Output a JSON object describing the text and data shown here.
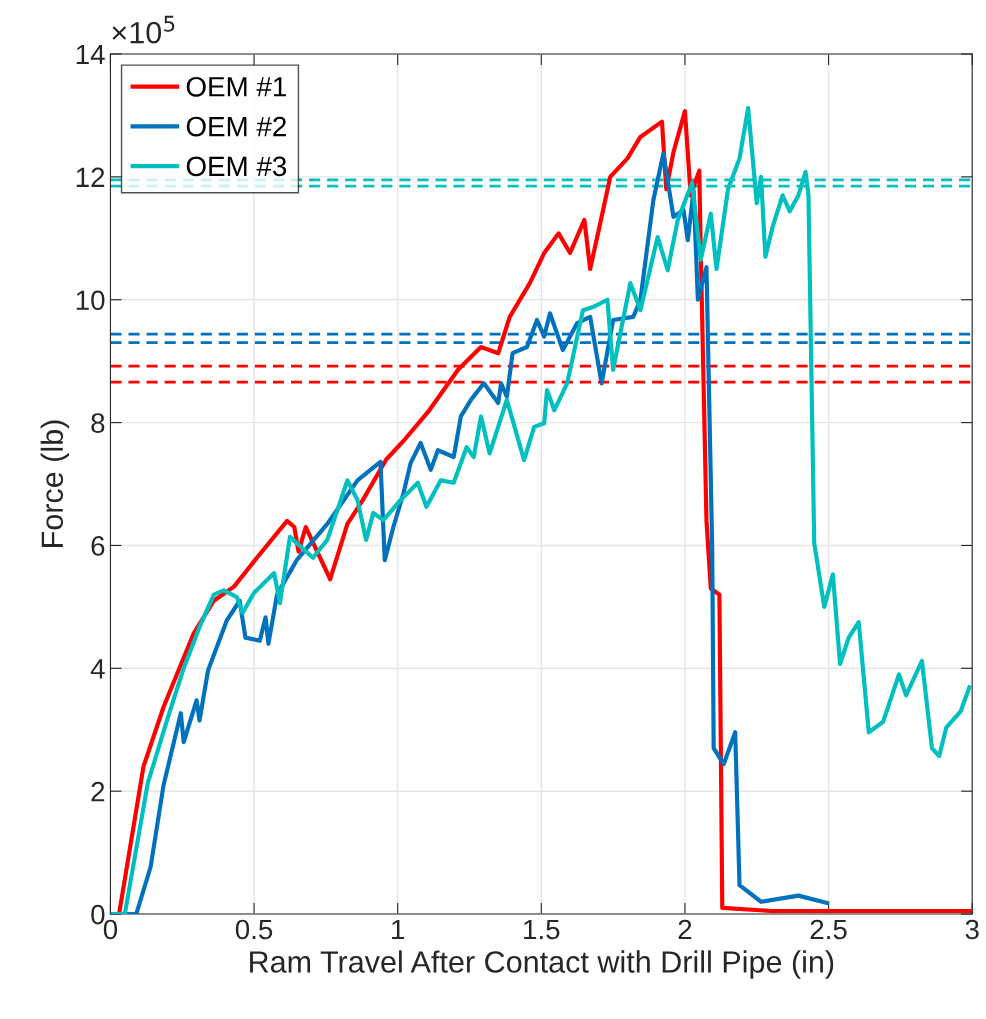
{
  "chart_data": {
    "type": "line",
    "xlabel": "Ram Travel After Contact with Drill Pipe (in)",
    "ylabel": "Force (lb)",
    "annotations": [
      "×10$^{5}$"
    ],
    "xlim": [
      0,
      3
    ],
    "xticks": [
      0,
      0.5,
      1,
      1.5,
      2,
      2.5,
      3
    ],
    "ylim": [
      0,
      14
    ],
    "yticks": [
      0,
      2,
      4,
      6,
      8,
      10,
      12,
      14
    ],
    "grid": true,
    "legend": "top left",
    "line_style": "solid",
    "marker": "none",
    "series": [
      {
        "name": "OEM #1",
        "color": "#ff0000",
        "x": [
          0.03,
          0.115,
          0.185,
          0.24,
          0.29,
          0.36,
          0.43,
          0.51,
          0.615,
          0.64,
          0.655,
          0.68,
          0.765,
          0.825,
          0.88,
          0.96,
          1.02,
          1.11,
          1.21,
          1.29,
          1.35,
          1.39,
          1.46,
          1.51,
          1.56,
          1.6,
          1.65,
          1.67,
          1.71,
          1.74,
          1.8,
          1.845,
          1.92,
          1.935,
          1.96,
          2.0,
          2.02,
          2.05,
          2.055,
          2.075,
          2.09,
          2.12,
          2.13,
          2.3,
          2.5,
          2.7,
          2.9,
          3.0
        ],
        "values": [
          0,
          2.4,
          3.37,
          4.0,
          4.57,
          5.1,
          5.33,
          5.8,
          6.4,
          6.3,
          5.9,
          6.3,
          5.45,
          6.35,
          6.75,
          7.4,
          7.7,
          8.2,
          8.86,
          9.23,
          9.13,
          9.72,
          10.27,
          10.76,
          11.08,
          10.76,
          11.3,
          10.5,
          11.35,
          12.0,
          12.3,
          12.65,
          12.9,
          11.8,
          12.4,
          13.07,
          11.7,
          12.1,
          10.8,
          6.4,
          5.3,
          5.2,
          0.1,
          0.05,
          0.05,
          0.05,
          0.05,
          0.05
        ]
      },
      {
        "name": "OEM #2",
        "color": "#0072bd",
        "x": [
          0.0,
          0.09,
          0.14,
          0.185,
          0.245,
          0.255,
          0.3,
          0.31,
          0.34,
          0.405,
          0.45,
          0.47,
          0.52,
          0.54,
          0.55,
          0.58,
          0.65,
          0.755,
          0.86,
          0.94,
          0.955,
          0.985,
          1.02,
          1.045,
          1.08,
          1.115,
          1.14,
          1.195,
          1.22,
          1.255,
          1.3,
          1.35,
          1.36,
          1.38,
          1.4,
          1.45,
          1.485,
          1.51,
          1.53,
          1.575,
          1.625,
          1.67,
          1.71,
          1.75,
          1.82,
          1.845,
          1.89,
          1.925,
          1.96,
          1.995,
          2.01,
          2.03,
          2.045,
          2.075,
          2.095,
          2.1,
          2.135,
          2.175,
          2.19,
          2.265,
          2.395,
          2.495
        ],
        "values": [
          0,
          0,
          0.77,
          2.1,
          3.27,
          2.8,
          3.48,
          3.15,
          3.97,
          4.78,
          5.1,
          4.5,
          4.45,
          4.83,
          4.4,
          5.2,
          5.77,
          6.35,
          7.06,
          7.36,
          5.76,
          6.3,
          6.85,
          7.34,
          7.67,
          7.23,
          7.55,
          7.44,
          8.1,
          8.37,
          8.64,
          8.32,
          8.64,
          8.42,
          9.13,
          9.23,
          9.67,
          9.4,
          9.78,
          9.18,
          9.62,
          9.72,
          8.64,
          9.67,
          9.72,
          10.0,
          11.62,
          12.38,
          11.35,
          11.46,
          10.97,
          11.78,
          10.0,
          10.53,
          5.93,
          2.7,
          2.44,
          2.96,
          0.47,
          0.2,
          0.3,
          0.18
        ]
      },
      {
        "name": "OEM #3",
        "color": "#00bfbf",
        "x": [
          0.01,
          0.05,
          0.13,
          0.2,
          0.255,
          0.31,
          0.36,
          0.395,
          0.44,
          0.46,
          0.5,
          0.57,
          0.59,
          0.625,
          0.705,
          0.755,
          0.825,
          0.86,
          0.89,
          0.915,
          0.95,
          1.01,
          1.045,
          1.07,
          1.1,
          1.15,
          1.195,
          1.24,
          1.265,
          1.29,
          1.32,
          1.38,
          1.44,
          1.475,
          1.51,
          1.52,
          1.545,
          1.59,
          1.61,
          1.645,
          1.68,
          1.73,
          1.75,
          1.775,
          1.81,
          1.845,
          1.905,
          1.94,
          1.975,
          2.025,
          2.055,
          2.09,
          2.11,
          2.15,
          2.19,
          2.22,
          2.25,
          2.265,
          2.28,
          2.305,
          2.34,
          2.365,
          2.395,
          2.42,
          2.43,
          2.45,
          2.485,
          2.515,
          2.54,
          2.57,
          2.605,
          2.64,
          2.69,
          2.745,
          2.77,
          2.825,
          2.86,
          2.885,
          2.91,
          2.96,
          2.99
        ],
        "values": [
          0,
          0,
          2.13,
          3.2,
          4.0,
          4.67,
          5.2,
          5.27,
          5.16,
          4.9,
          5.23,
          5.55,
          5.06,
          6.14,
          5.8,
          6.09,
          7.06,
          6.74,
          6.09,
          6.53,
          6.41,
          6.74,
          6.9,
          7.02,
          6.63,
          7.06,
          7.02,
          7.6,
          7.44,
          8.1,
          7.5,
          8.37,
          7.39,
          7.93,
          7.99,
          8.53,
          8.2,
          8.64,
          9.07,
          9.83,
          9.88,
          10.0,
          8.86,
          9.45,
          10.27,
          9.83,
          11.02,
          10.48,
          11.3,
          11.9,
          10.65,
          11.4,
          10.5,
          11.8,
          12.3,
          13.12,
          11.57,
          12.0,
          10.7,
          11.18,
          11.7,
          11.44,
          11.7,
          12.08,
          11.7,
          6.04,
          5.0,
          5.53,
          4.07,
          4.5,
          4.75,
          2.96,
          3.13,
          3.9,
          3.56,
          4.12,
          2.7,
          2.57,
          3.04,
          3.3,
          3.69
        ]
      }
    ],
    "ref_lines": [
      {
        "axis": "y",
        "value": 11.95,
        "color": "#00bfbf",
        "line_style": "dashed"
      },
      {
        "axis": "y",
        "value": 11.85,
        "color": "#00bfbf",
        "line_style": "dashed"
      },
      {
        "axis": "y",
        "value": 9.44,
        "color": "#0072bd",
        "line_style": "dashed"
      },
      {
        "axis": "y",
        "value": 9.3,
        "color": "#0072bd",
        "line_style": "dashed"
      },
      {
        "axis": "y",
        "value": 8.92,
        "color": "#ff0000",
        "line_style": "dashed"
      },
      {
        "axis": "y",
        "value": 8.66,
        "color": "#ff0000",
        "line_style": "dashed"
      }
    ]
  }
}
